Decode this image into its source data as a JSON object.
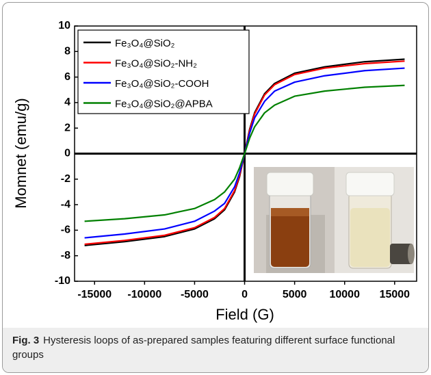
{
  "chart_data": {
    "type": "line",
    "x_label": "Field (G)",
    "y_label": "Momnet (emu/g)",
    "x": [
      -16000,
      -12000,
      -8000,
      -5000,
      -3000,
      -2000,
      -1000,
      -500,
      0,
      500,
      1000,
      2000,
      3000,
      5000,
      8000,
      12000,
      16000
    ],
    "series": [
      {
        "name": "Fe₃O₄@SiO₂",
        "color": "#000000",
        "values": [
          -7.2,
          -6.9,
          -6.5,
          -5.9,
          -5.1,
          -4.4,
          -3.0,
          -1.8,
          0,
          1.9,
          3.2,
          4.7,
          5.5,
          6.3,
          6.8,
          7.2,
          7.4
        ]
      },
      {
        "name": "Fe₃O₄@SiO₂-NH₂",
        "color": "#ff0000",
        "values": [
          -7.1,
          -6.8,
          -6.4,
          -5.8,
          -5.0,
          -4.3,
          -2.9,
          -1.7,
          0,
          1.8,
          3.1,
          4.6,
          5.4,
          6.2,
          6.7,
          7.05,
          7.25
        ]
      },
      {
        "name": "Fe₃O₄@SiO₂-COOH",
        "color": "#0000ff",
        "values": [
          -6.6,
          -6.3,
          -5.9,
          -5.3,
          -4.5,
          -3.9,
          -2.6,
          -1.5,
          0,
          1.6,
          2.8,
          4.1,
          4.9,
          5.6,
          6.1,
          6.5,
          6.7
        ]
      },
      {
        "name": "Fe₃O₄@SiO₂@APBA",
        "color": "#008000",
        "values": [
          -5.3,
          -5.1,
          -4.8,
          -4.3,
          -3.6,
          -3.0,
          -2.0,
          -1.1,
          0,
          1.2,
          2.1,
          3.2,
          3.8,
          4.5,
          4.9,
          5.2,
          5.35
        ]
      }
    ],
    "xlim": [
      -17000,
      17200
    ],
    "ylim": [
      -10,
      10
    ],
    "xticks": [
      -15000,
      -10000,
      -5000,
      0,
      5000,
      10000,
      15000
    ],
    "yticks": [
      -10,
      -8,
      -6,
      -4,
      -2,
      0,
      2,
      4,
      6,
      8,
      10
    ],
    "legend": "upper left"
  },
  "caption": {
    "label": "Fig. 3",
    "text": "Hysteresis loops of as-prepared samples featuring different surface functional groups"
  }
}
